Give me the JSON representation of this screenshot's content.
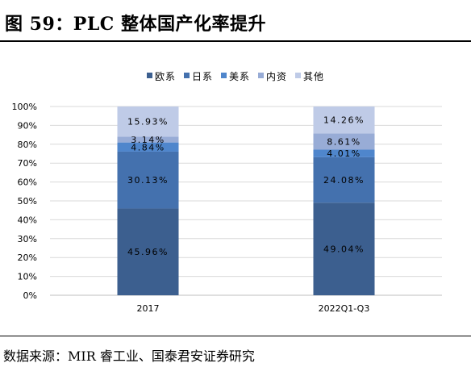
{
  "figure": {
    "title": "图 59：PLC 整体国产化率提升",
    "source": "数据来源：MIR 睿工业、国泰君安证券研究"
  },
  "chart_data": {
    "type": "bar",
    "stacked": true,
    "categories": [
      "2017",
      "2022Q1-Q3"
    ],
    "series": [
      {
        "name": "欧系",
        "color": "#3c5f8f",
        "values": [
          45.96,
          49.04
        ],
        "labels": [
          "45.96%",
          "49.04%"
        ]
      },
      {
        "name": "日系",
        "color": "#4471ae",
        "values": [
          30.13,
          24.08
        ],
        "labels": [
          "30.13%",
          "24.08%"
        ]
      },
      {
        "name": "美系",
        "color": "#4f86cc",
        "values": [
          4.84,
          4.01
        ],
        "labels": [
          "4.84%",
          "4.01%"
        ]
      },
      {
        "name": "内资",
        "color": "#98acd6",
        "values": [
          3.14,
          8.61
        ],
        "labels": [
          "3.14%",
          "8.61%"
        ]
      },
      {
        "name": "其他",
        "color": "#bfcbe7",
        "values": [
          15.93,
          14.26
        ],
        "labels": [
          "15.93%",
          "14.26%"
        ]
      }
    ],
    "ylim": [
      0,
      100
    ],
    "yticks": [
      "0%",
      "10%",
      "20%",
      "30%",
      "40%",
      "50%",
      "60%",
      "70%",
      "80%",
      "90%",
      "100%"
    ],
    "grid": true,
    "legend_position": "top-center"
  }
}
